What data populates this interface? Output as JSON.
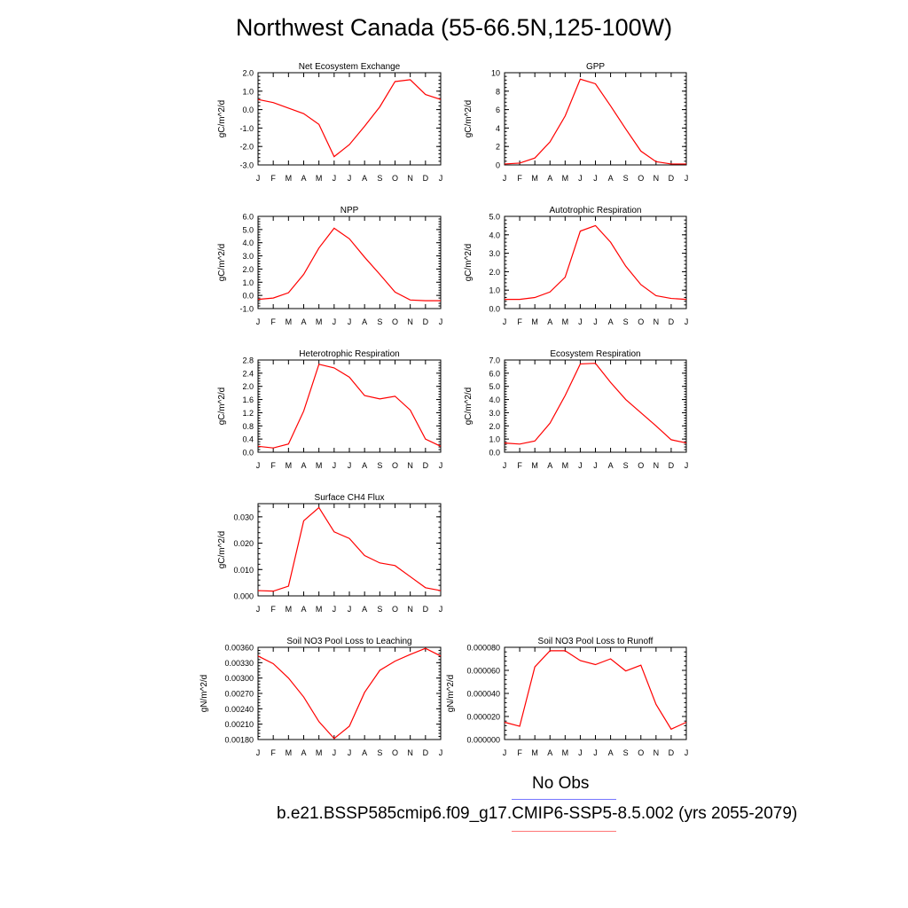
{
  "title": "Northwest Canada (55-66.5N,125-100W)",
  "legend": {
    "obs_label": "No Obs",
    "obs_color": "#7777ff",
    "case_label": "b.e21.BSSP585cmip6.f09_g17.CMIP6-SSP5-8.5.002 (yrs 2055-2079)",
    "case_color": "#ff7777"
  },
  "chart_data": [
    {
      "type": "line",
      "title": "Net Ecosystem Exchange",
      "ylabel": "gC/m^2/d",
      "categories": [
        "J",
        "F",
        "M",
        "A",
        "M",
        "J",
        "J",
        "A",
        "S",
        "O",
        "N",
        "D",
        "J"
      ],
      "values": [
        0.55,
        0.38,
        0.08,
        -0.22,
        -0.8,
        -2.55,
        -1.9,
        -0.9,
        0.15,
        1.52,
        1.62,
        0.82,
        0.55
      ],
      "ylim": [
        -3.0,
        2.0
      ],
      "ytick_labels": [
        "-3.0",
        "-2.0",
        "-1.0",
        "0.0",
        "1.0",
        "2.0"
      ],
      "ytick_values": [
        -3.0,
        -2.0,
        -1.0,
        0.0,
        1.0,
        2.0
      ],
      "line_color": "#ff0000"
    },
    {
      "type": "line",
      "title": "GPP",
      "ylabel": "gC/m^2/d",
      "categories": [
        "J",
        "F",
        "M",
        "A",
        "M",
        "J",
        "J",
        "A",
        "S",
        "O",
        "N",
        "D",
        "J"
      ],
      "values": [
        0.1,
        0.2,
        0.75,
        2.5,
        5.3,
        9.3,
        8.8,
        6.4,
        3.9,
        1.5,
        0.35,
        0.1,
        0.1
      ],
      "ylim": [
        0,
        10
      ],
      "ytick_labels": [
        "0",
        "2",
        "4",
        "6",
        "8",
        "10"
      ],
      "ytick_values": [
        0,
        2,
        4,
        6,
        8,
        10
      ],
      "line_color": "#ff0000"
    },
    {
      "type": "line",
      "title": "NPP",
      "ylabel": "gC/m^2/d",
      "categories": [
        "J",
        "F",
        "M",
        "A",
        "M",
        "J",
        "J",
        "A",
        "S",
        "O",
        "N",
        "D",
        "J"
      ],
      "values": [
        -0.3,
        -0.2,
        0.2,
        1.6,
        3.6,
        5.1,
        4.3,
        2.9,
        1.6,
        0.25,
        -0.35,
        -0.4,
        -0.4
      ],
      "ylim": [
        -1.0,
        6.0
      ],
      "ytick_labels": [
        "-1.0",
        "0.0",
        "1.0",
        "2.0",
        "3.0",
        "4.0",
        "5.0",
        "6.0"
      ],
      "ytick_values": [
        -1.0,
        0.0,
        1.0,
        2.0,
        3.0,
        4.0,
        5.0,
        6.0
      ],
      "line_color": "#ff0000"
    },
    {
      "type": "line",
      "title": "Autotrophic Respiration",
      "ylabel": "gC/m^2/d",
      "categories": [
        "J",
        "F",
        "M",
        "A",
        "M",
        "J",
        "J",
        "A",
        "S",
        "O",
        "N",
        "D",
        "J"
      ],
      "values": [
        0.5,
        0.5,
        0.6,
        0.9,
        1.7,
        4.2,
        4.5,
        3.6,
        2.3,
        1.3,
        0.7,
        0.55,
        0.5
      ],
      "ylim": [
        0,
        5.0
      ],
      "ytick_labels": [
        "0.0",
        "1.0",
        "2.0",
        "3.0",
        "4.0",
        "5.0"
      ],
      "ytick_values": [
        0,
        1,
        2,
        3,
        4,
        5
      ],
      "line_color": "#ff0000"
    },
    {
      "type": "line",
      "title": "Heterotrophic Respiration",
      "ylabel": "gC/m^2/d",
      "categories": [
        "J",
        "F",
        "M",
        "A",
        "M",
        "J",
        "J",
        "A",
        "S",
        "O",
        "N",
        "D",
        "J"
      ],
      "values": [
        0.18,
        0.13,
        0.25,
        1.25,
        2.67,
        2.56,
        2.28,
        1.72,
        1.62,
        1.7,
        1.28,
        0.4,
        0.18
      ],
      "ylim": [
        0,
        2.8
      ],
      "ytick_labels": [
        "0.0",
        "0.4",
        "0.8",
        "1.2",
        "1.6",
        "2.0",
        "2.4",
        "2.8"
      ],
      "ytick_values": [
        0,
        0.4,
        0.8,
        1.2,
        1.6,
        2.0,
        2.4,
        2.8
      ],
      "line_color": "#ff0000"
    },
    {
      "type": "line",
      "title": "Ecosystem Respiration",
      "ylabel": "gC/m^2/d",
      "categories": [
        "J",
        "F",
        "M",
        "A",
        "M",
        "J",
        "J",
        "A",
        "S",
        "O",
        "N",
        "D",
        "J"
      ],
      "values": [
        0.7,
        0.62,
        0.85,
        2.2,
        4.3,
        6.7,
        6.75,
        5.3,
        4.0,
        3.0,
        2.0,
        0.95,
        0.7
      ],
      "ylim": [
        0,
        7.0
      ],
      "ytick_labels": [
        "0.0",
        "1.0",
        "2.0",
        "3.0",
        "4.0",
        "5.0",
        "6.0",
        "7.0"
      ],
      "ytick_values": [
        0,
        1,
        2,
        3,
        4,
        5,
        6,
        7
      ],
      "line_color": "#ff0000"
    },
    {
      "type": "line",
      "title": "Surface CH4 Flux",
      "ylabel": "gC/m^2/d",
      "categories": [
        "J",
        "F",
        "M",
        "A",
        "M",
        "J",
        "J",
        "A",
        "S",
        "O",
        "N",
        "D",
        "J"
      ],
      "values": [
        0.002,
        0.0018,
        0.0037,
        0.0285,
        0.0335,
        0.0243,
        0.0218,
        0.0153,
        0.0125,
        0.0115,
        0.0073,
        0.0031,
        0.002
      ],
      "ylim": [
        0,
        0.035
      ],
      "ytick_labels": [
        "0.000",
        "0.010",
        "0.020",
        "0.030"
      ],
      "ytick_values": [
        0,
        0.01,
        0.02,
        0.03
      ],
      "line_color": "#ff0000"
    },
    {
      "type": "line",
      "title": "Soil NO3 Pool Loss to Leaching",
      "ylabel": "gN/m^2/d",
      "categories": [
        "J",
        "F",
        "M",
        "A",
        "M",
        "J",
        "J",
        "A",
        "S",
        "O",
        "N",
        "D",
        "J"
      ],
      "values": [
        0.00343,
        0.00328,
        0.003,
        0.00263,
        0.00215,
        0.00182,
        0.00206,
        0.00272,
        0.00315,
        0.00333,
        0.00346,
        0.00358,
        0.00343
      ],
      "ylim": [
        0.0018,
        0.0036
      ],
      "ytick_labels": [
        "0.00180",
        "0.00210",
        "0.00240",
        "0.00270",
        "0.00300",
        "0.00330",
        "0.00360"
      ],
      "ytick_values": [
        0.0018,
        0.0021,
        0.0024,
        0.0027,
        0.003,
        0.0033,
        0.0036
      ],
      "line_color": "#ff0000"
    },
    {
      "type": "line",
      "title": "Soil NO3 Pool Loss to Runoff",
      "ylabel": "gN/m^2/d",
      "categories": [
        "J",
        "F",
        "M",
        "A",
        "M",
        "J",
        "J",
        "A",
        "S",
        "O",
        "N",
        "D",
        "J"
      ],
      "values": [
        1.5e-05,
        1.15e-05,
        6.3e-05,
        7.7e-05,
        7.7e-05,
        6.85e-05,
        6.5e-05,
        7e-05,
        5.95e-05,
        6.45e-05,
        3.05e-05,
        9e-06,
        1.5e-05
      ],
      "ylim": [
        0,
        8e-05
      ],
      "ytick_labels": [
        "0.000000",
        "0.000020",
        "0.000040",
        "0.000060",
        "0.000080"
      ],
      "ytick_values": [
        0,
        2e-05,
        4e-05,
        6e-05,
        8e-05
      ],
      "line_color": "#ff0000"
    }
  ]
}
